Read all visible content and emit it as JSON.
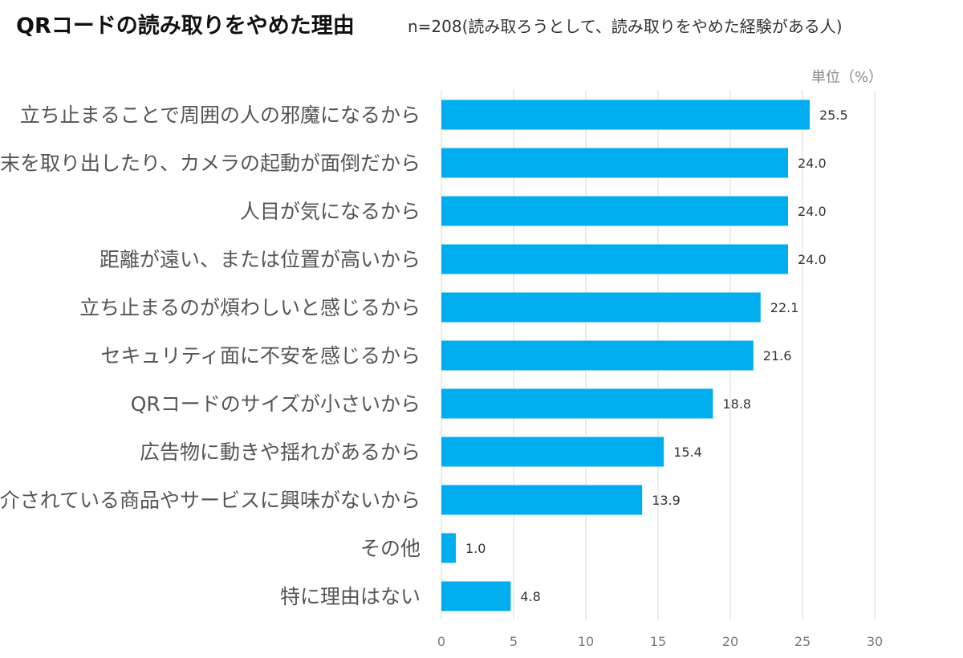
{
  "title": "QRコードの読み取りをやめた理由",
  "subtitle": "n=208(読み取ろうとして、読み取りをやめた経験がある人)",
  "unit_label": "単位（%）",
  "chart_data": {
    "type": "bar",
    "orientation": "horizontal",
    "categories": [
      "立ち止まることで周囲の人の邪魔になるから",
      "端末を取り出したり、カメラの起動が面倒だから",
      "人目が気になるから",
      "距離が遠い、または位置が高いから",
      "立ち止まるのが煩わしいと感じるから",
      "セキュリティ面に不安を感じるから",
      "QRコードのサイズが小さいから",
      "広告物に動きや揺れがあるから",
      "紹介されている商品やサービスに興味がないから",
      "その他",
      "特に理由はない"
    ],
    "values": [
      25.5,
      24.0,
      24.0,
      24.0,
      22.1,
      21.6,
      18.8,
      15.4,
      13.9,
      1.0,
      4.8
    ],
    "value_labels": [
      "25.5",
      "24.0",
      "24.0",
      "24.0",
      "22.1",
      "21.6",
      "18.8",
      "15.4",
      "13.9",
      "1.0",
      "4.8"
    ],
    "xlim": [
      0,
      30
    ],
    "xticks": [
      0,
      5,
      10,
      15,
      20,
      25,
      30
    ],
    "grid": true,
    "bar_color": "#00AEEF",
    "grid_color": "#d9d9d9"
  }
}
